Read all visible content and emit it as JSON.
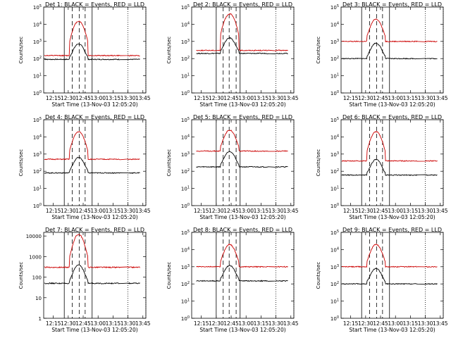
{
  "chart_data": [
    {
      "type": "line",
      "title": "Det 1: BLACK = Events, RED = LLD",
      "ylabel": "Counts/sec",
      "xlabel": "Start Time (13-Nov-03 12:05:20)",
      "x_ticks": [
        "12:15",
        "12:30",
        "12:45",
        "13:00",
        "13:15",
        "13:30",
        "13:45"
      ],
      "y_ticks": [
        "10^0",
        "10^1",
        "10^2",
        "10^3",
        "10^4",
        "10^5"
      ],
      "yscale": "log",
      "ylim": [
        1,
        100000
      ],
      "xlim": [
        "12:05:20",
        "13:48"
      ],
      "series": [
        {
          "name": "Events",
          "color": "#000000",
          "level": 90,
          "peak": null
        },
        {
          "name": "LLD",
          "color": "#cc0000",
          "level": 150,
          "peak": 15000
        }
      ],
      "solid_markers": [
        "12:26",
        "12:54"
      ],
      "dashed_markers": [
        "12:34",
        "12:41",
        "12:47"
      ],
      "dotted_markers": [
        "13:30",
        "13:48"
      ]
    },
    {
      "type": "line",
      "title": "Det 2: BLACK = Events, RED = LLD",
      "ylabel": "Counts/sec",
      "xlabel": "Start Time (13-Nov-03 12:05:20)",
      "x_ticks": [
        "12:15",
        "12:30",
        "12:45",
        "13:00",
        "13:15",
        "13:30",
        "13:45"
      ],
      "y_ticks": [
        "10^0",
        "10^1",
        "10^2",
        "10^3",
        "10^4",
        "10^5"
      ],
      "yscale": "log",
      "ylim": [
        1,
        100000
      ],
      "xlim": [
        "12:05:20",
        "13:48"
      ],
      "series": [
        {
          "name": "Events",
          "color": "#000000",
          "level": 200,
          "peak": null
        },
        {
          "name": "LLD",
          "color": "#cc0000",
          "level": 300,
          "peak": 40000
        }
      ],
      "solid_markers": [
        "12:30",
        "12:54"
      ],
      "dashed_markers": [
        "12:37",
        "12:43",
        "12:50"
      ],
      "dotted_markers": [
        "13:30",
        "13:48"
      ]
    },
    {
      "type": "line",
      "title": "Det 3: BLACK = Events, RED = LLD",
      "ylabel": "Counts/sec",
      "xlabel": "Start Time (13-Nov-03 12:05:20)",
      "x_ticks": [
        "12:15",
        "12:30",
        "12:45",
        "13:00",
        "13:15",
        "13:30",
        "13:45"
      ],
      "y_ticks": [
        "10^0",
        "10^1",
        "10^2",
        "10^3",
        "10^4",
        "10^5"
      ],
      "yscale": "log",
      "ylim": [
        1,
        100000
      ],
      "xlim": [
        "12:05:20",
        "13:48"
      ],
      "series": [
        {
          "name": "Events",
          "color": "#000000",
          "level": 100,
          "peak": null
        },
        {
          "name": "LLD",
          "color": "#cc0000",
          "level": 1000,
          "peak": 20000
        }
      ],
      "solid_markers": [
        "12:26",
        "12:54"
      ],
      "dashed_markers": [
        "12:34",
        "12:41",
        "12:47"
      ],
      "dotted_markers": [
        "13:30",
        "13:48"
      ]
    },
    {
      "type": "line",
      "title": "Det 4: BLACK = Events, RED = LLD",
      "ylabel": "Counts/sec",
      "xlabel": "Start Time (13-Nov-03 12:05:20)",
      "x_ticks": [
        "12:15",
        "12:30",
        "12:45",
        "13:00",
        "13:15",
        "13:30",
        "13:45"
      ],
      "y_ticks": [
        "10^0",
        "10^1",
        "10^2",
        "10^3",
        "10^4",
        "10^5"
      ],
      "yscale": "log",
      "ylim": [
        1,
        100000
      ],
      "xlim": [
        "12:05:20",
        "13:48"
      ],
      "series": [
        {
          "name": "Events",
          "color": "#000000",
          "level": 80,
          "peak": null
        },
        {
          "name": "LLD",
          "color": "#cc0000",
          "level": 500,
          "peak": 20000
        }
      ],
      "solid_markers": [
        "12:26",
        "12:54"
      ],
      "dashed_markers": [
        "12:34",
        "12:41",
        "12:47"
      ],
      "dotted_markers": [
        "13:30",
        "13:48"
      ]
    },
    {
      "type": "line",
      "title": "Det 5: BLACK = Events, RED = LLD",
      "ylabel": "Counts/sec",
      "xlabel": "Start Time (13-Nov-03 12:05:20)",
      "x_ticks": [
        "12:15",
        "12:30",
        "12:45",
        "13:00",
        "13:15",
        "13:30",
        "13:45"
      ],
      "y_ticks": [
        "10^0",
        "10^1",
        "10^2",
        "10^3",
        "10^4",
        "10^5"
      ],
      "yscale": "log",
      "ylim": [
        1,
        100000
      ],
      "xlim": [
        "12:05:20",
        "13:48"
      ],
      "series": [
        {
          "name": "Events",
          "color": "#000000",
          "level": 180,
          "peak": null
        },
        {
          "name": "LLD",
          "color": "#cc0000",
          "level": 1500,
          "peak": 25000
        }
      ],
      "solid_markers": [
        "12:30",
        "12:54"
      ],
      "dashed_markers": [
        "12:37",
        "12:43",
        "12:50"
      ],
      "dotted_markers": [
        "13:30",
        "13:48"
      ]
    },
    {
      "type": "line",
      "title": "Det 6: BLACK = Events, RED = LLD",
      "ylabel": "Counts/sec",
      "xlabel": "Start Time (13-Nov-03 12:05:20)",
      "x_ticks": [
        "12:15",
        "12:30",
        "12:45",
        "13:00",
        "13:15",
        "13:30",
        "13:45"
      ],
      "y_ticks": [
        "10^0",
        "10^1",
        "10^2",
        "10^3",
        "10^4",
        "10^5"
      ],
      "yscale": "log",
      "ylim": [
        1,
        100000
      ],
      "xlim": [
        "12:05:20",
        "13:48"
      ],
      "series": [
        {
          "name": "Events",
          "color": "#000000",
          "level": 60,
          "peak": null
        },
        {
          "name": "LLD",
          "color": "#cc0000",
          "level": 400,
          "peak": 20000
        }
      ],
      "solid_markers": [
        "12:26",
        "12:54"
      ],
      "dashed_markers": [
        "12:34",
        "12:41",
        "12:47"
      ],
      "dotted_markers": [
        "13:30",
        "13:48"
      ]
    },
    {
      "type": "line",
      "title": "Det 7: BLACK = Events, RED = LLD",
      "ylabel": "Counts/sec",
      "xlabel": "Start Time (13-Nov-03 12:05:20)",
      "x_ticks": [
        "12:15",
        "12:30",
        "12:45",
        "13:00",
        "13:15",
        "13:30",
        "13:45"
      ],
      "y_ticks": [
        "1",
        "10",
        "100",
        "1000",
        "10000"
      ],
      "yscale": "log",
      "ylim": [
        1,
        15000
      ],
      "xlim": [
        "12:05:20",
        "13:48"
      ],
      "series": [
        {
          "name": "Events",
          "color": "#000000",
          "level": 50,
          "peak": null
        },
        {
          "name": "LLD",
          "color": "#cc0000",
          "level": 300,
          "peak": 12000
        }
      ],
      "solid_markers": [
        "12:26",
        "12:54"
      ],
      "dashed_markers": [
        "12:34",
        "12:41",
        "12:47"
      ],
      "dotted_markers": [
        "13:30",
        "13:48"
      ]
    },
    {
      "type": "line",
      "title": "Det 8: BLACK = Events, RED = LLD",
      "ylabel": "Counts/sec",
      "xlabel": "Start Time (13-Nov-03 12:05:20)",
      "x_ticks": [
        "12:15",
        "12:30",
        "12:45",
        "13:00",
        "13:15",
        "13:30",
        "13:45"
      ],
      "y_ticks": [
        "10^0",
        "10^1",
        "10^2",
        "10^3",
        "10^4",
        "10^5"
      ],
      "yscale": "log",
      "ylim": [
        1,
        100000
      ],
      "xlim": [
        "12:05:20",
        "13:48"
      ],
      "series": [
        {
          "name": "Events",
          "color": "#000000",
          "level": 150,
          "peak": null
        },
        {
          "name": "LLD",
          "color": "#cc0000",
          "level": 1000,
          "peak": 20000
        }
      ],
      "solid_markers": [
        "12:30",
        "12:54"
      ],
      "dashed_markers": [
        "12:37",
        "12:43",
        "12:50"
      ],
      "dotted_markers": [
        "13:30",
        "13:48"
      ]
    },
    {
      "type": "line",
      "title": "Det 9: BLACK = Events, RED = LLD",
      "ylabel": "Counts/sec",
      "xlabel": "Start Time (13-Nov-03 12:05:20)",
      "x_ticks": [
        "12:15",
        "12:30",
        "12:45",
        "13:00",
        "13:15",
        "13:30",
        "13:45"
      ],
      "y_ticks": [
        "10^0",
        "10^1",
        "10^2",
        "10^3",
        "10^4",
        "10^5"
      ],
      "yscale": "log",
      "ylim": [
        1,
        100000
      ],
      "xlim": [
        "12:05:20",
        "13:48"
      ],
      "series": [
        {
          "name": "Events",
          "color": "#000000",
          "level": 100,
          "peak": null
        },
        {
          "name": "LLD",
          "color": "#cc0000",
          "level": 1000,
          "peak": 20000
        }
      ],
      "solid_markers": [
        "12:26",
        "12:54"
      ],
      "dashed_markers": [
        "12:34",
        "12:41",
        "12:47"
      ],
      "dotted_markers": [
        "13:30",
        "13:48"
      ]
    }
  ]
}
